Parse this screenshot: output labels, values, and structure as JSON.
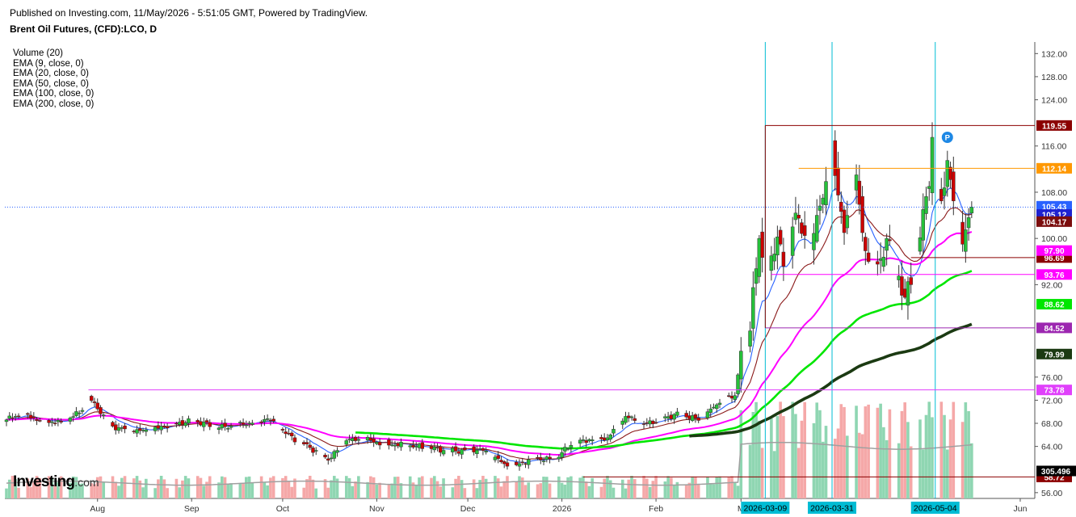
{
  "header": {
    "published": "Published on Investing.com, 11/May/2026 - 5:51:05 GMT, Powered by TradingView.",
    "instrument": "Brent Oil Futures, (CFD):LCO, D"
  },
  "legend": [
    "Volume (20)",
    "EMA (9, close, 0)",
    "EMA (20, close, 0)",
    "EMA (50, close, 0)",
    "EMA (100, close, 0)",
    "EMA (200, close, 0)"
  ],
  "logo": {
    "main": "Investing",
    "suffix": ".com"
  },
  "chart_data": {
    "type": "candlestick",
    "title": "Brent Oil Futures, (CFD):LCO, D",
    "y_axis": {
      "position": "right",
      "ticks": [
        132,
        128,
        124,
        116,
        108,
        100,
        92,
        76,
        72,
        68,
        64,
        56
      ],
      "tick_labels": [
        "132.00",
        "128.00",
        "124.00",
        "116.00",
        "108.00",
        "100.00",
        "92.00",
        "76.00",
        "72.00",
        "68.00",
        "64.00",
        "56.00"
      ],
      "range": [
        55,
        134
      ]
    },
    "x_axis": {
      "labels": [
        {
          "label": "Aug",
          "day": 30
        },
        {
          "label": "Sep",
          "day": 61
        },
        {
          "label": "Oct",
          "day": 91
        },
        {
          "label": "Nov",
          "day": 122
        },
        {
          "label": "Dec",
          "day": 152
        },
        {
          "label": "2026",
          "day": 183
        },
        {
          "label": "Feb",
          "day": 214
        },
        {
          "label": "M",
          "day": 242
        },
        {
          "label": "Jun",
          "day": 334
        }
      ],
      "highlighted": [
        {
          "label": "2026-03-09",
          "day": 250
        },
        {
          "label": "2026-03-31",
          "day": 272
        },
        {
          "label": "2026-05-04",
          "day": 306
        }
      ],
      "range_days": [
        0,
        338
      ],
      "origin_date": "2025-07-01"
    },
    "price_levels": [
      {
        "value": 119.55,
        "label": "119.55",
        "color": "#8b0000",
        "from_day": 250
      },
      {
        "value": 112.14,
        "label": "112.14",
        "color": "#ff9800",
        "from_day": 261
      },
      {
        "value": 96.69,
        "label": "96.69",
        "color": "#8b0000",
        "from_day": 298
      },
      {
        "value": 93.76,
        "label": "93.76",
        "color": "#ff00ff",
        "from_day": 252
      },
      {
        "value": 84.52,
        "label": "84.52",
        "color": "#9c27b0",
        "from_day": 250
      },
      {
        "value": 73.78,
        "label": "73.78",
        "color": "#e040fb",
        "from_day": 27
      }
    ],
    "price_labels": [
      {
        "value": 105.43,
        "label": "105.43",
        "color": "#2962ff"
      },
      {
        "value": 105.12,
        "label": "105.12",
        "color": "#1e22d0"
      },
      {
        "value": 104.17,
        "label": "104.17",
        "color": "#7b0d0d"
      },
      {
        "value": 97.9,
        "label": "97.90",
        "color": "#ff00ff"
      },
      {
        "value": 88.62,
        "label": "88.62",
        "color": "#00e600"
      },
      {
        "value": 79.99,
        "label": "79.99",
        "color": "#1b3a12"
      },
      {
        "value": 58.72,
        "label": "58.72",
        "color": "#8b0000"
      }
    ],
    "volume_label": {
      "value": "305.496"
    },
    "current_price": 105.43,
    "pivot_marker": {
      "label": "P",
      "day": 310,
      "price": 117.5
    },
    "ohlc_keypoints": [
      {
        "d": 0,
        "c": 68.6
      },
      {
        "d": 5,
        "c": 69.6
      },
      {
        "d": 12,
        "c": 68.4
      },
      {
        "d": 18,
        "c": 68.2
      },
      {
        "d": 24,
        "c": 69.8
      },
      {
        "d": 27,
        "c": 72.4
      },
      {
        "d": 30,
        "c": 70.5
      },
      {
        "d": 35,
        "c": 67.5
      },
      {
        "d": 42,
        "c": 66.6
      },
      {
        "d": 48,
        "c": 66.8
      },
      {
        "d": 55,
        "c": 68.0
      },
      {
        "d": 62,
        "c": 68.4
      },
      {
        "d": 70,
        "c": 67.2
      },
      {
        "d": 78,
        "c": 67.8
      },
      {
        "d": 86,
        "c": 68.8
      },
      {
        "d": 92,
        "c": 66.2
      },
      {
        "d": 100,
        "c": 63.8
      },
      {
        "d": 106,
        "c": 61.6
      },
      {
        "d": 112,
        "c": 65.0
      },
      {
        "d": 118,
        "c": 65.2
      },
      {
        "d": 124,
        "c": 64.5
      },
      {
        "d": 132,
        "c": 64.2
      },
      {
        "d": 140,
        "c": 63.6
      },
      {
        "d": 148,
        "c": 63.2
      },
      {
        "d": 156,
        "c": 63.6
      },
      {
        "d": 164,
        "c": 61.0
      },
      {
        "d": 168,
        "c": 60.8
      },
      {
        "d": 174,
        "c": 62.0
      },
      {
        "d": 180,
        "c": 61.6
      },
      {
        "d": 186,
        "c": 64.2
      },
      {
        "d": 192,
        "c": 65.2
      },
      {
        "d": 198,
        "c": 65.5
      },
      {
        "d": 204,
        "c": 69.2
      },
      {
        "d": 210,
        "c": 67.8
      },
      {
        "d": 216,
        "c": 68.8
      },
      {
        "d": 222,
        "c": 69.8
      },
      {
        "d": 228,
        "c": 68.5
      },
      {
        "d": 232,
        "c": 70.5
      },
      {
        "d": 236,
        "c": 72.0
      },
      {
        "d": 240,
        "c": 72.8
      },
      {
        "d": 242,
        "c": 80.5
      },
      {
        "d": 245,
        "c": 84.0
      },
      {
        "d": 246,
        "c": 91.5
      },
      {
        "d": 248,
        "c": 100.0
      },
      {
        "d": 250,
        "c": 90.2
      },
      {
        "d": 252,
        "c": 97.0
      },
      {
        "d": 255,
        "c": 99.0
      },
      {
        "d": 257,
        "c": 95.0
      },
      {
        "d": 259,
        "c": 102.0
      },
      {
        "d": 261,
        "c": 103.5
      },
      {
        "d": 263,
        "c": 100.5
      },
      {
        "d": 265,
        "c": 97.0
      },
      {
        "d": 267,
        "c": 104.0
      },
      {
        "d": 269,
        "c": 107.0
      },
      {
        "d": 271,
        "c": 112.5
      },
      {
        "d": 272,
        "c": 117.5
      },
      {
        "d": 274,
        "c": 107.5
      },
      {
        "d": 276,
        "c": 101.0
      },
      {
        "d": 278,
        "c": 106.0
      },
      {
        "d": 280,
        "c": 111.0
      },
      {
        "d": 282,
        "c": 101.0
      },
      {
        "d": 284,
        "c": 96.0
      },
      {
        "d": 286,
        "c": 95.5
      },
      {
        "d": 288,
        "c": 96.5
      },
      {
        "d": 290,
        "c": 100.0
      },
      {
        "d": 292,
        "c": 95.0
      },
      {
        "d": 294,
        "c": 93.5
      },
      {
        "d": 296,
        "c": 89.8
      },
      {
        "d": 298,
        "c": 92.0
      },
      {
        "d": 300,
        "c": 96.5
      },
      {
        "d": 302,
        "c": 105.0
      },
      {
        "d": 304,
        "c": 109.0
      },
      {
        "d": 305,
        "c": 117.5
      },
      {
        "d": 306,
        "c": 112.0
      },
      {
        "d": 308,
        "c": 106.5
      },
      {
        "d": 310,
        "c": 113.5
      },
      {
        "d": 312,
        "c": 106.5
      },
      {
        "d": 314,
        "c": 101.5
      },
      {
        "d": 315,
        "c": 99.0
      },
      {
        "d": 316,
        "c": 101.5
      },
      {
        "d": 318,
        "c": 105.43
      }
    ],
    "ema_series": [
      {
        "name": "EMA (9, close, 0)",
        "color": "#2962ff",
        "period": 9
      },
      {
        "name": "EMA (20, close, 0)",
        "color": "#8b1a1a",
        "period": 20
      },
      {
        "name": "EMA (50, close, 0)",
        "color": "#ff00ff",
        "period": 50
      },
      {
        "name": "EMA (100, close, 0)",
        "color": "#00e600",
        "period": 100
      },
      {
        "name": "EMA (200, close, 0)",
        "color": "#1b3a12",
        "period": 200
      }
    ],
    "colors": {
      "up": "#26c13a",
      "down": "#cc0000",
      "vol_up": "#8fd6b2",
      "vol_down": "#f5a8a8",
      "highlight": "#00bcd4"
    }
  }
}
